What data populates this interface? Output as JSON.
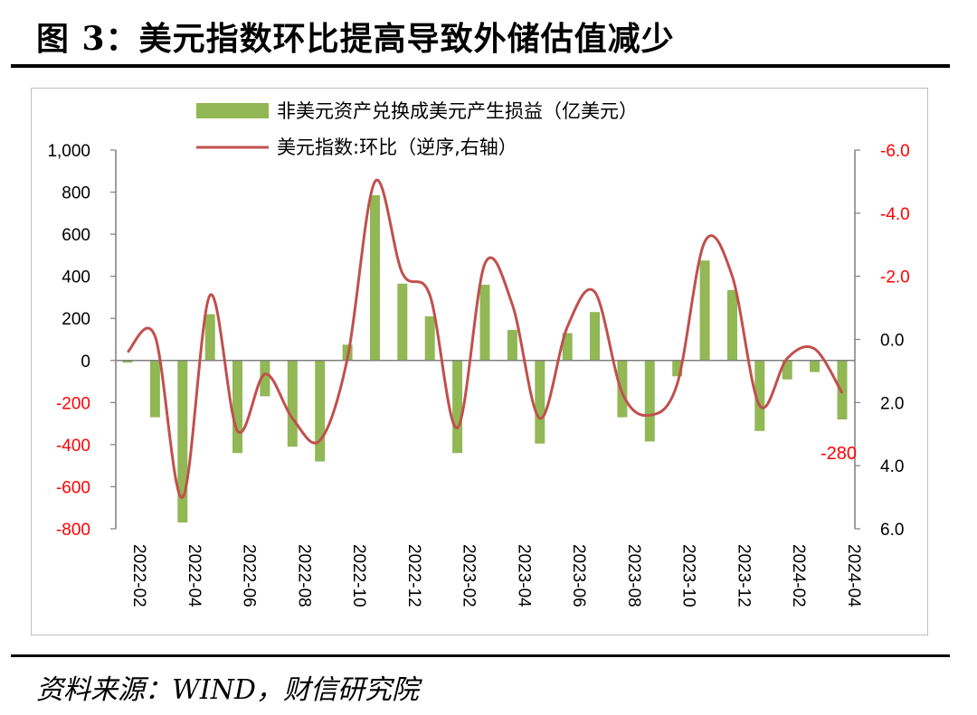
{
  "figure": {
    "title": "图 3：美元指数环比提高导致外储估值减少",
    "source": "资料来源：WIND，财信研究院"
  },
  "chart_data": {
    "type": "bar+line",
    "categories": [
      "2022-02",
      "2022-03",
      "2022-04",
      "2022-05",
      "2022-06",
      "2022-07",
      "2022-08",
      "2022-09",
      "2022-10",
      "2022-11",
      "2022-12",
      "2023-01",
      "2023-02",
      "2023-03",
      "2023-04",
      "2023-05",
      "2023-06",
      "2023-07",
      "2023-08",
      "2023-09",
      "2023-10",
      "2023-11",
      "2023-12",
      "2024-01",
      "2024-02",
      "2024-03",
      "2024-04"
    ],
    "x_tick_labels": [
      "2022-02",
      "2022-04",
      "2022-06",
      "2022-08",
      "2022-10",
      "2022-12",
      "2023-02",
      "2023-04",
      "2023-06",
      "2023-08",
      "2023-10",
      "2023-12",
      "2024-02",
      "2024-04"
    ],
    "series": [
      {
        "name": "非美元资产兑换成美元产生损益（亿美元）",
        "type": "bar",
        "axis": "left",
        "color": "#92b755",
        "values": [
          -10,
          -270,
          -770,
          220,
          -440,
          -170,
          -410,
          -480,
          75,
          785,
          365,
          210,
          -440,
          360,
          145,
          -395,
          130,
          230,
          -270,
          -385,
          -75,
          475,
          335,
          -335,
          -90,
          -55,
          -280
        ]
      },
      {
        "name": "美元指数:环比（逆序,右轴）",
        "type": "line",
        "axis": "right",
        "inverted": true,
        "color": "#c0504d",
        "values": [
          0.4,
          -0.1,
          5.0,
          -1.4,
          2.9,
          1.1,
          2.5,
          3.2,
          0.6,
          -5.0,
          -2.1,
          -1.4,
          2.8,
          -2.4,
          -1.1,
          2.5,
          -0.4,
          -1.5,
          1.7,
          2.4,
          1.4,
          -3.1,
          -2.0,
          2.1,
          0.6,
          0.3,
          1.7
        ]
      }
    ],
    "left_axis": {
      "min": -800,
      "max": 1000,
      "ticks": [
        "-800",
        "-600",
        "-400",
        "-200",
        "0",
        "200",
        "400",
        "600",
        "800",
        "1,000"
      ],
      "negative_color": "#ff0000"
    },
    "right_axis": {
      "min": -6.0,
      "max": 6.0,
      "inverted": true,
      "ticks": [
        "-6.0",
        "-4.0",
        "-2.0",
        "0.0",
        "2.0",
        "4.0",
        "6.0"
      ],
      "negative_color": "#ff0000"
    },
    "annotations": [
      {
        "text": "-280",
        "color": "#ff0000"
      }
    ],
    "legend": "top-center",
    "grid": false
  }
}
